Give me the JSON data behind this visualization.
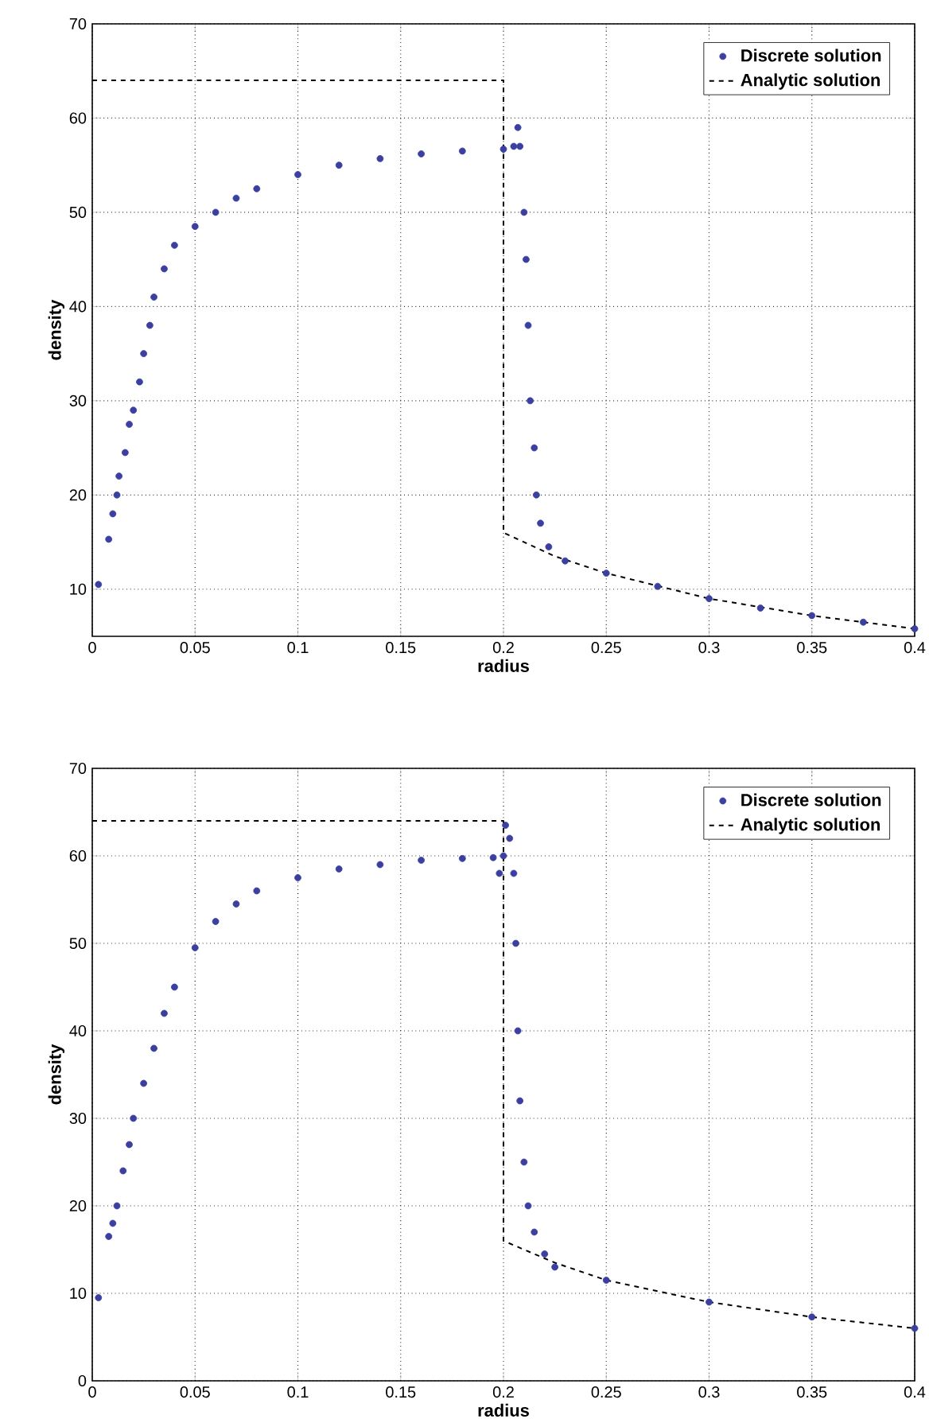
{
  "chart_data": [
    {
      "type": "scatter",
      "xlabel": "radius",
      "ylabel": "density",
      "xlim": [
        0,
        0.4
      ],
      "ylim": [
        5,
        70
      ],
      "xticks": [
        0,
        0.05,
        0.1,
        0.15,
        0.2,
        0.25,
        0.3,
        0.35,
        0.4
      ],
      "yticks": [
        10,
        20,
        30,
        40,
        50,
        60,
        70
      ],
      "grid": true,
      "legend": "top right",
      "series": [
        {
          "name": "Discrete solution",
          "type": "scatter",
          "marker": "circle",
          "color": "#3a3fa0",
          "x": [
            0.003,
            0.008,
            0.01,
            0.012,
            0.013,
            0.016,
            0.018,
            0.02,
            0.023,
            0.025,
            0.028,
            0.03,
            0.035,
            0.04,
            0.05,
            0.06,
            0.07,
            0.08,
            0.1,
            0.12,
            0.14,
            0.16,
            0.18,
            0.2,
            0.205,
            0.207,
            0.208,
            0.21,
            0.211,
            0.212,
            0.213,
            0.215,
            0.216,
            0.218,
            0.222,
            0.23,
            0.25,
            0.275,
            0.3,
            0.325,
            0.35,
            0.375,
            0.4
          ],
          "values": [
            10.5,
            15.3,
            18,
            20,
            22,
            24.5,
            27.5,
            29,
            32,
            35,
            38,
            41,
            44,
            46.5,
            48.5,
            50,
            51.5,
            52.5,
            54,
            55,
            55.7,
            56.2,
            56.5,
            56.7,
            57,
            59,
            57,
            50,
            45,
            38,
            30,
            25,
            20,
            17,
            14.5,
            13,
            11.7,
            10.3,
            9,
            8,
            7.2,
            6.5,
            5.8
          ]
        },
        {
          "name": "Analytic solution",
          "type": "line",
          "line_style": "dashed",
          "marker": "none",
          "color": "#000000",
          "x": [
            0,
            0.2,
            0.2,
            0.225,
            0.25,
            0.3,
            0.35,
            0.4
          ],
          "values": [
            64,
            64,
            16,
            13.5,
            11.7,
            9,
            7.2,
            5.8
          ]
        }
      ]
    },
    {
      "type": "scatter",
      "xlabel": "radius",
      "ylabel": "density",
      "xlim": [
        0,
        0.4
      ],
      "ylim": [
        0,
        70
      ],
      "xticks": [
        0,
        0.05,
        0.1,
        0.15,
        0.2,
        0.25,
        0.3,
        0.35,
        0.4
      ],
      "yticks": [
        0,
        10,
        20,
        30,
        40,
        50,
        60,
        70
      ],
      "grid": true,
      "legend": "top right",
      "series": [
        {
          "name": "Discrete solution",
          "type": "scatter",
          "marker": "circle",
          "color": "#3a3fa0",
          "x": [
            0.003,
            0.008,
            0.01,
            0.012,
            0.015,
            0.018,
            0.02,
            0.025,
            0.03,
            0.035,
            0.04,
            0.05,
            0.06,
            0.07,
            0.08,
            0.1,
            0.12,
            0.14,
            0.16,
            0.18,
            0.195,
            0.198,
            0.2,
            0.201,
            0.203,
            0.205,
            0.206,
            0.207,
            0.208,
            0.21,
            0.212,
            0.215,
            0.22,
            0.225,
            0.25,
            0.3,
            0.35,
            0.4
          ],
          "values": [
            9.5,
            16.5,
            18,
            20,
            24,
            27,
            30,
            34,
            38,
            42,
            45,
            49.5,
            52.5,
            54.5,
            56,
            57.5,
            58.5,
            59,
            59.5,
            59.7,
            59.8,
            58,
            60,
            63.5,
            62,
            58,
            50,
            40,
            32,
            25,
            20,
            17,
            14.5,
            13,
            11.5,
            9,
            7.3,
            6
          ]
        },
        {
          "name": "Analytic solution",
          "type": "line",
          "line_style": "dashed",
          "marker": "none",
          "color": "#000000",
          "x": [
            0,
            0.2,
            0.2,
            0.225,
            0.25,
            0.3,
            0.35,
            0.4
          ],
          "values": [
            64,
            64,
            16,
            13.5,
            11.5,
            9,
            7.3,
            6
          ]
        }
      ]
    }
  ]
}
